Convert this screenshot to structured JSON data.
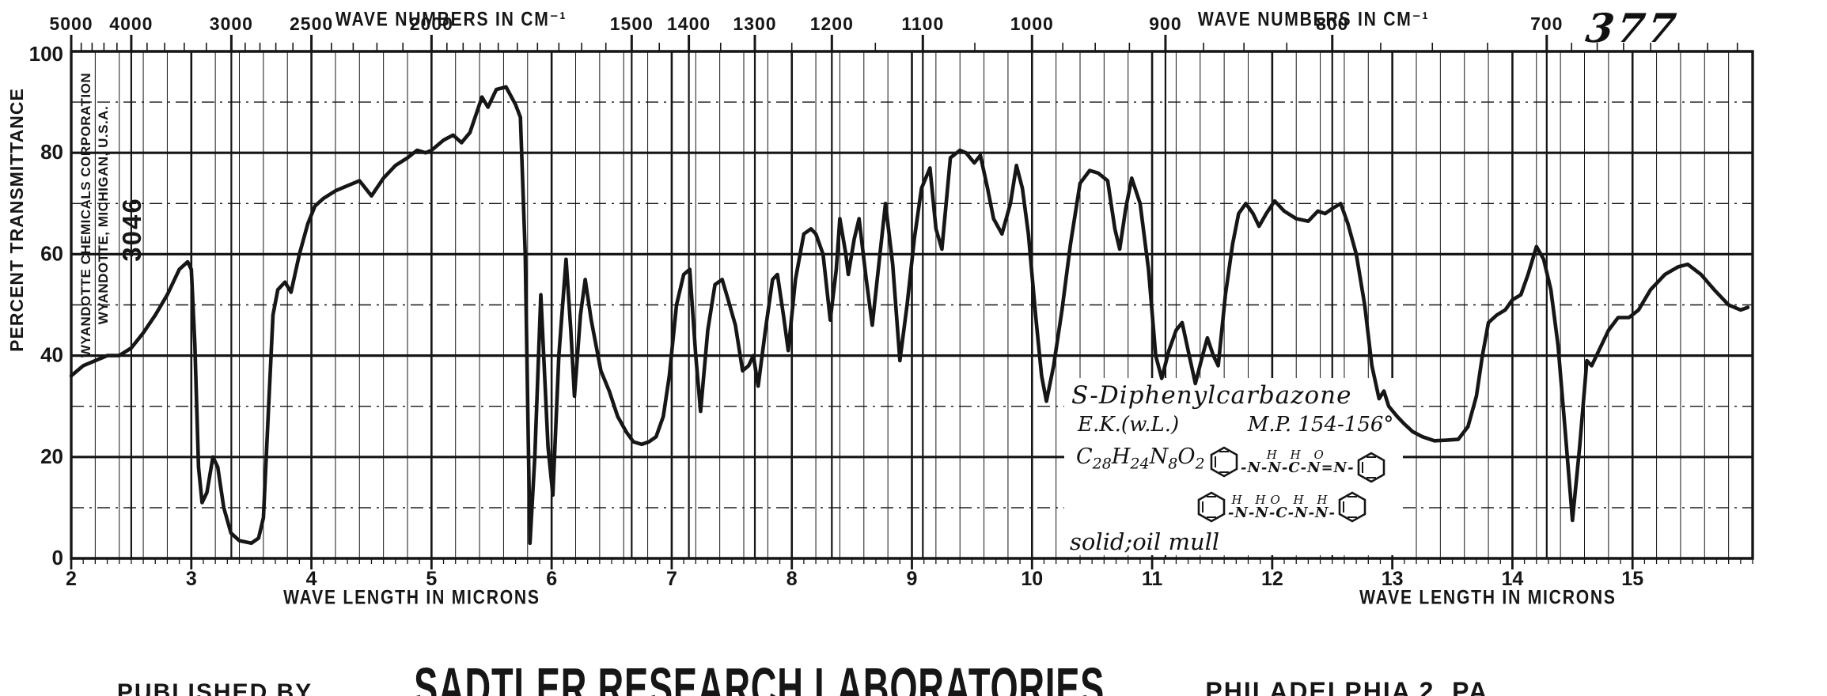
{
  "header": {
    "top_axis_title_left": "WAVE NUMBERS IN CM⁻¹",
    "top_axis_title_right": "WAVE NUMBERS IN CM⁻¹",
    "spectrum_number": "377"
  },
  "y_axis": {
    "title": "PERCENT TRANSMITTANCE",
    "tick_labels": [
      100,
      80,
      60,
      40,
      20,
      0
    ]
  },
  "x_axis_bottom": {
    "title_left": "WAVE LENGTH IN MICRONS",
    "title_right": "WAVE LENGTH IN MICRONS"
  },
  "stamp": {
    "line1": "WYANDOTTE CHEMICALS CORPORATION",
    "line2": "WYANDOTTE, MICHIGAN, U.S.A.",
    "number": "3046"
  },
  "annotation": {
    "compound": "S-Diphenylcarbazone",
    "source": "E.K.(w.L.)",
    "melting_point": "M.P. 154-156°",
    "formula_parts": [
      {
        "t": "C"
      },
      {
        "t": "28",
        "sub": true
      },
      {
        "t": "H"
      },
      {
        "t": "24",
        "sub": true
      },
      {
        "t": "N"
      },
      {
        "t": "8",
        "sub": true
      },
      {
        "t": "O"
      },
      {
        "t": "2",
        "sub": true
      }
    ],
    "structure1_top": "H H O",
    "structure1_chain": "-N-N-C-N=N-",
    "structure2_top": "H HO H H",
    "structure2_chain": "-N-N-C-N-N-",
    "sample_form": "solid;oil mull"
  },
  "footer": {
    "published_by": "PUBLISHED BY",
    "publisher": "SADTLER RESEARCH LABORATORIES",
    "location": "PHILADELPHIA 2, PA."
  },
  "colors": {
    "ink": "#161616",
    "paper": "#ffffff"
  },
  "chart_data": {
    "type": "line",
    "title": "Infrared absorption spectrum No. 377 — S-Diphenylcarbazone (solid; oil mull)",
    "xlabel": "WAVE LENGTH IN MICRONS",
    "ylabel": "PERCENT TRANSMITTANCE",
    "x_unit": "micron",
    "xlim": [
      2,
      16
    ],
    "ylim": [
      0,
      100
    ],
    "grid": {
      "h_major_percent": [
        0,
        20,
        40,
        60,
        80,
        100
      ],
      "h_minor_percent": [
        10,
        30,
        50,
        70,
        90
      ],
      "v_minor_step_micron": 0.2
    },
    "x_ticks_microns": [
      2,
      3,
      4,
      5,
      6,
      7,
      8,
      9,
      10,
      11,
      12,
      13,
      14,
      15
    ],
    "top_axis": {
      "label": "WAVE NUMBERS IN CM⁻¹",
      "labeled_ticks_cm1": [
        5000,
        4000,
        3000,
        2500,
        2000,
        1500,
        1400,
        1300,
        1200,
        1100,
        1000,
        900,
        800,
        700
      ],
      "minor_ticks_cm1": [
        4800,
        4600,
        4400,
        4200,
        3800,
        3600,
        3400,
        3200,
        2900,
        2800,
        2700,
        2600,
        2400,
        2300,
        2200,
        2100,
        1950,
        1900,
        1850,
        1800,
        1750,
        1700,
        1650,
        1600,
        1550,
        1450,
        1350,
        1250,
        1150,
        1050,
        975,
        950,
        925,
        875,
        850,
        825,
        775,
        750,
        725,
        690,
        680,
        670,
        660,
        650,
        640,
        630
      ]
    },
    "series": [
      {
        "name": "S-Diphenylcarbazone (solid; oil mull)",
        "points": [
          [
            2.0,
            36
          ],
          [
            2.05,
            37
          ],
          [
            2.1,
            38
          ],
          [
            2.2,
            39
          ],
          [
            2.3,
            40
          ],
          [
            2.4,
            40
          ],
          [
            2.5,
            41.5
          ],
          [
            2.6,
            44.5
          ],
          [
            2.7,
            48
          ],
          [
            2.8,
            52
          ],
          [
            2.9,
            57
          ],
          [
            2.97,
            58.5
          ],
          [
            3.0,
            57
          ],
          [
            3.03,
            42
          ],
          [
            3.06,
            18
          ],
          [
            3.09,
            11
          ],
          [
            3.13,
            13
          ],
          [
            3.18,
            20
          ],
          [
            3.22,
            18
          ],
          [
            3.27,
            10
          ],
          [
            3.33,
            5
          ],
          [
            3.4,
            3.5
          ],
          [
            3.5,
            3
          ],
          [
            3.56,
            4
          ],
          [
            3.6,
            8
          ],
          [
            3.64,
            28
          ],
          [
            3.68,
            48
          ],
          [
            3.72,
            53
          ],
          [
            3.78,
            54.5
          ],
          [
            3.83,
            52.5
          ],
          [
            3.9,
            60
          ],
          [
            3.97,
            66
          ],
          [
            4.03,
            69.5
          ],
          [
            4.1,
            71
          ],
          [
            4.2,
            72.5
          ],
          [
            4.3,
            73.5
          ],
          [
            4.4,
            74.5
          ],
          [
            4.45,
            73
          ],
          [
            4.5,
            71.5
          ],
          [
            4.6,
            75
          ],
          [
            4.7,
            77.5
          ],
          [
            4.8,
            79
          ],
          [
            4.88,
            80.5
          ],
          [
            4.95,
            80
          ],
          [
            5.0,
            80.5
          ],
          [
            5.1,
            82.5
          ],
          [
            5.18,
            83.5
          ],
          [
            5.25,
            82
          ],
          [
            5.32,
            84
          ],
          [
            5.42,
            91
          ],
          [
            5.47,
            89
          ],
          [
            5.54,
            92.5
          ],
          [
            5.62,
            93
          ],
          [
            5.7,
            89.5
          ],
          [
            5.74,
            87
          ],
          [
            5.78,
            60
          ],
          [
            5.82,
            3
          ],
          [
            5.86,
            20
          ],
          [
            5.91,
            52
          ],
          [
            5.97,
            22
          ],
          [
            6.01,
            12.5
          ],
          [
            6.06,
            40
          ],
          [
            6.12,
            59
          ],
          [
            6.16,
            45
          ],
          [
            6.19,
            32
          ],
          [
            6.24,
            48
          ],
          [
            6.28,
            55
          ],
          [
            6.33,
            47
          ],
          [
            6.41,
            37
          ],
          [
            6.48,
            33
          ],
          [
            6.55,
            28
          ],
          [
            6.62,
            25
          ],
          [
            6.68,
            23
          ],
          [
            6.75,
            22.5
          ],
          [
            6.81,
            23
          ],
          [
            6.87,
            24
          ],
          [
            6.93,
            28
          ],
          [
            6.98,
            36
          ],
          [
            7.04,
            50
          ],
          [
            7.1,
            56
          ],
          [
            7.15,
            57
          ],
          [
            7.2,
            40
          ],
          [
            7.24,
            29
          ],
          [
            7.3,
            45
          ],
          [
            7.36,
            54
          ],
          [
            7.42,
            55
          ],
          [
            7.47,
            51
          ],
          [
            7.53,
            46
          ],
          [
            7.59,
            37
          ],
          [
            7.64,
            38
          ],
          [
            7.68,
            40
          ],
          [
            7.72,
            34
          ],
          [
            7.78,
            45
          ],
          [
            7.84,
            55
          ],
          [
            7.88,
            56
          ],
          [
            7.93,
            48
          ],
          [
            7.97,
            41
          ],
          [
            8.03,
            55
          ],
          [
            8.1,
            64
          ],
          [
            8.16,
            65
          ],
          [
            8.2,
            64
          ],
          [
            8.26,
            60
          ],
          [
            8.32,
            47
          ],
          [
            8.37,
            57
          ],
          [
            8.4,
            67
          ],
          [
            8.45,
            60
          ],
          [
            8.47,
            56
          ],
          [
            8.52,
            63
          ],
          [
            8.56,
            67
          ],
          [
            8.62,
            55
          ],
          [
            8.67,
            46
          ],
          [
            8.72,
            57
          ],
          [
            8.78,
            70
          ],
          [
            8.84,
            58
          ],
          [
            8.9,
            39
          ],
          [
            8.96,
            50
          ],
          [
            9.02,
            63
          ],
          [
            9.08,
            73
          ],
          [
            9.15,
            77
          ],
          [
            9.2,
            65
          ],
          [
            9.25,
            61
          ],
          [
            9.32,
            79
          ],
          [
            9.4,
            80.5
          ],
          [
            9.45,
            80
          ],
          [
            9.52,
            78
          ],
          [
            9.57,
            79.5
          ],
          [
            9.63,
            73
          ],
          [
            9.68,
            67
          ],
          [
            9.75,
            64
          ],
          [
            9.82,
            70
          ],
          [
            9.87,
            77.5
          ],
          [
            9.92,
            73
          ],
          [
            9.97,
            64
          ],
          [
            10.03,
            48
          ],
          [
            10.08,
            36
          ],
          [
            10.12,
            31
          ],
          [
            10.18,
            38
          ],
          [
            10.25,
            49
          ],
          [
            10.32,
            62
          ],
          [
            10.4,
            74
          ],
          [
            10.48,
            76.5
          ],
          [
            10.55,
            76
          ],
          [
            10.63,
            74.5
          ],
          [
            10.69,
            65
          ],
          [
            10.73,
            61
          ],
          [
            10.78,
            69
          ],
          [
            10.83,
            75
          ],
          [
            10.9,
            70
          ],
          [
            10.97,
            57
          ],
          [
            11.03,
            40
          ],
          [
            11.08,
            35.5
          ],
          [
            11.14,
            41
          ],
          [
            11.2,
            45
          ],
          [
            11.25,
            46.5
          ],
          [
            11.3,
            41
          ],
          [
            11.36,
            34.5
          ],
          [
            11.42,
            40
          ],
          [
            11.46,
            43.5
          ],
          [
            11.51,
            40
          ],
          [
            11.55,
            38
          ],
          [
            11.61,
            52
          ],
          [
            11.67,
            62
          ],
          [
            11.72,
            68
          ],
          [
            11.78,
            70
          ],
          [
            11.84,
            68
          ],
          [
            11.89,
            65.5
          ],
          [
            11.95,
            68
          ],
          [
            12.02,
            70.5
          ],
          [
            12.1,
            68.5
          ],
          [
            12.2,
            67
          ],
          [
            12.3,
            66.5
          ],
          [
            12.38,
            68.5
          ],
          [
            12.44,
            68
          ],
          [
            12.5,
            69
          ],
          [
            12.57,
            70
          ],
          [
            12.63,
            66
          ],
          [
            12.7,
            60
          ],
          [
            12.77,
            50
          ],
          [
            12.83,
            38
          ],
          [
            12.89,
            31.5
          ],
          [
            12.93,
            33
          ],
          [
            12.97,
            30
          ],
          [
            13.04,
            28
          ],
          [
            13.1,
            26.5
          ],
          [
            13.17,
            25
          ],
          [
            13.25,
            24
          ],
          [
            13.35,
            23.2
          ],
          [
            13.45,
            23.3
          ],
          [
            13.55,
            23.5
          ],
          [
            13.63,
            26
          ],
          [
            13.7,
            32
          ],
          [
            13.75,
            40
          ],
          [
            13.8,
            46.5
          ],
          [
            13.87,
            48
          ],
          [
            13.94,
            49
          ],
          [
            14.0,
            51
          ],
          [
            14.07,
            52
          ],
          [
            14.13,
            56
          ],
          [
            14.2,
            61.5
          ],
          [
            14.26,
            59
          ],
          [
            14.32,
            53
          ],
          [
            14.38,
            42
          ],
          [
            14.44,
            25
          ],
          [
            14.5,
            7.5
          ],
          [
            14.56,
            22
          ],
          [
            14.62,
            39
          ],
          [
            14.66,
            38
          ],
          [
            14.72,
            41
          ],
          [
            14.8,
            45
          ],
          [
            14.88,
            47.5
          ],
          [
            14.97,
            47.5
          ],
          [
            15.05,
            49
          ],
          [
            15.15,
            53
          ],
          [
            15.27,
            56
          ],
          [
            15.38,
            57.5
          ],
          [
            15.46,
            58
          ],
          [
            15.57,
            56
          ],
          [
            15.68,
            53
          ],
          [
            15.8,
            50
          ],
          [
            15.9,
            49
          ],
          [
            15.96,
            49.5
          ]
        ]
      }
    ]
  }
}
